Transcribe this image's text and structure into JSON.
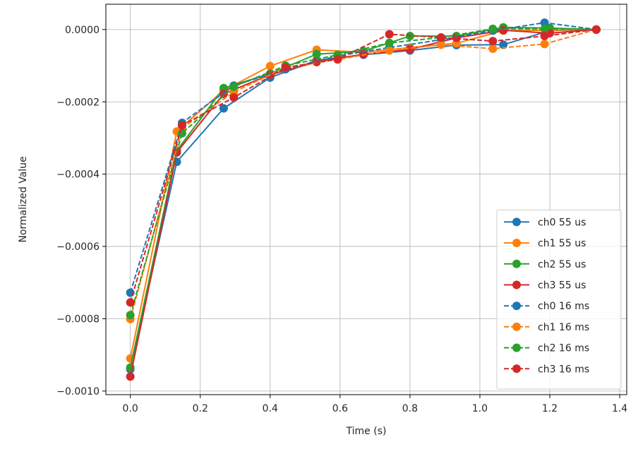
{
  "chart_data": {
    "type": "line",
    "title": "",
    "xlabel": "Time (s)",
    "ylabel": "Normalized Value",
    "xlim": [
      -0.07,
      1.42
    ],
    "ylim": [
      -0.00101,
      7e-05
    ],
    "xticks": [
      0.0,
      0.2,
      0.4,
      0.6,
      0.8,
      1.0,
      1.2,
      1.4
    ],
    "xtick_labels": [
      "0.0",
      "0.2",
      "0.4",
      "0.6",
      "0.8",
      "1.0",
      "1.2",
      "1.4"
    ],
    "yticks": [
      0.0,
      -0.0002,
      -0.0004,
      -0.0006,
      -0.0008,
      -0.001
    ],
    "ytick_labels": [
      "0.0000",
      "−0.0002",
      "−0.0004",
      "−0.0006",
      "−0.0008",
      "−0.0010"
    ],
    "grid": true,
    "legend_position": "lower right",
    "series": [
      {
        "name": "ch0 55 us",
        "color": "#1f77b4",
        "style": "solid",
        "x": [
          0.0,
          0.133,
          0.267,
          0.4,
          0.533,
          0.667,
          0.8,
          0.933,
          1.067,
          1.2,
          1.333
        ],
        "y": [
          -0.00094,
          -0.000366,
          -0.000218,
          -0.000133,
          -8.5e-05,
          -7e-05,
          -5.8e-05,
          -4.3e-05,
          -4.2e-05,
          -3e-06,
          0.0
        ]
      },
      {
        "name": "ch1 55 us",
        "color": "#ff7f0e",
        "style": "solid",
        "x": [
          0.0,
          0.133,
          0.267,
          0.4,
          0.533,
          0.667,
          0.8,
          0.933,
          1.067,
          1.2,
          1.333
        ],
        "y": [
          -0.00091,
          -0.000282,
          -0.000168,
          -0.000101,
          -5.6e-05,
          -6.3e-05,
          -5e-05,
          -3.8e-05,
          -3e-06,
          -2e-06,
          0.0
        ]
      },
      {
        "name": "ch2 55 us",
        "color": "#2ca02c",
        "style": "solid",
        "x": [
          0.0,
          0.133,
          0.267,
          0.4,
          0.533,
          0.667,
          0.8,
          0.933,
          1.067,
          1.2,
          1.333
        ],
        "y": [
          -0.000935,
          -0.000335,
          -0.000162,
          -0.000122,
          -6.8e-05,
          -6e-05,
          -1.8e-05,
          -1.8e-05,
          6e-06,
          4e-06,
          0.0
        ]
      },
      {
        "name": "ch3 55 us",
        "color": "#d62728",
        "style": "solid",
        "x": [
          0.0,
          0.133,
          0.267,
          0.4,
          0.533,
          0.667,
          0.8,
          0.933,
          1.067,
          1.2,
          1.333
        ],
        "y": [
          -0.00096,
          -0.00034,
          -0.000178,
          -0.000125,
          -9e-05,
          -6.8e-05,
          -5.5e-05,
          -2.3e-05,
          -2e-06,
          -1e-05,
          0.0
        ]
      },
      {
        "name": "ch0 16 ms",
        "color": "#1f77b4",
        "style": "dashed",
        "x": [
          0.0,
          0.148,
          0.296,
          0.444,
          0.593,
          0.741,
          0.889,
          1.037,
          1.185,
          1.333
        ],
        "y": [
          -0.000728,
          -0.000258,
          -0.000155,
          -0.00011,
          -7.3e-05,
          -5e-05,
          -2.8e-05,
          -3e-06,
          1.9e-05,
          0.0
        ]
      },
      {
        "name": "ch1 16 ms",
        "color": "#ff7f0e",
        "style": "dashed",
        "x": [
          0.0,
          0.148,
          0.296,
          0.444,
          0.593,
          0.741,
          0.889,
          1.037,
          1.185,
          1.333
        ],
        "y": [
          -0.000801,
          -0.000273,
          -0.000173,
          -0.000105,
          -8.3e-05,
          -5.8e-05,
          -4.2e-05,
          -5.3e-05,
          -4e-05,
          0.0
        ]
      },
      {
        "name": "ch2 16 ms",
        "color": "#2ca02c",
        "style": "dashed",
        "x": [
          0.0,
          0.148,
          0.296,
          0.444,
          0.593,
          0.741,
          0.889,
          1.037,
          1.185,
          1.333
        ],
        "y": [
          -0.00079,
          -0.000287,
          -0.000158,
          -0.0001,
          -7e-05,
          -3.7e-05,
          -2.2e-05,
          2e-06,
          2e-06,
          0.0
        ]
      },
      {
        "name": "ch3 16 ms",
        "color": "#d62728",
        "style": "dashed",
        "x": [
          0.0,
          0.148,
          0.296,
          0.444,
          0.593,
          0.741,
          0.889,
          1.037,
          1.185,
          1.333
        ],
        "y": [
          -0.000755,
          -0.000265,
          -0.000188,
          -0.000105,
          -8.2e-05,
          -1.3e-05,
          -2.2e-05,
          -3.2e-05,
          -1.8e-05,
          0.0
        ]
      }
    ]
  }
}
